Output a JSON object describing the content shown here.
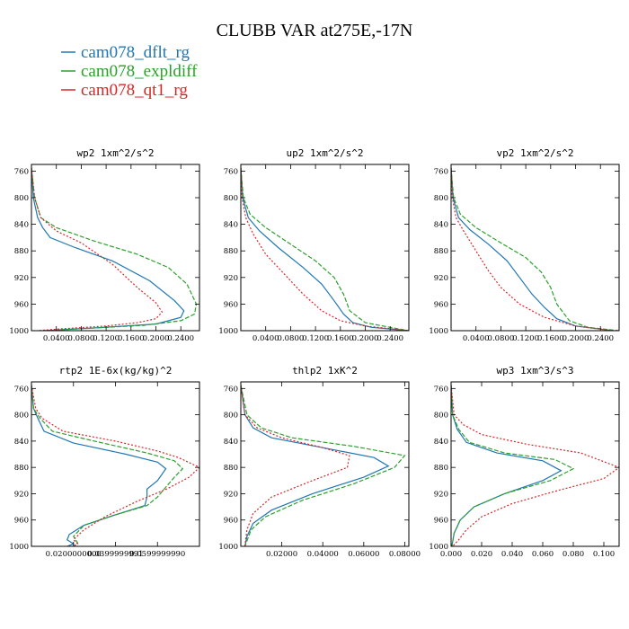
{
  "figure": {
    "title": "CLUBB VAR at275E,-17N",
    "legend": [
      {
        "name": "cam078_dflt_rg",
        "color": "#1f77b4"
      },
      {
        "name": "cam078_expldiff",
        "color": "#2ca02c"
      },
      {
        "name": "cam078_qt1_rg",
        "color": "#d62728"
      }
    ]
  },
  "chart_data": [
    {
      "type": "line",
      "title": "wp2   1xm^2/s^2",
      "xlim": [
        0.0,
        0.27
      ],
      "ylim": [
        1000,
        750
      ],
      "y_inverted": true,
      "xticks": [
        0.04,
        0.08,
        0.12,
        0.16,
        0.2,
        0.24
      ],
      "xtick_labels": [
        "0.0400",
        "0.0800",
        "0.1200",
        "0.1600",
        "0.2000",
        "0.2400"
      ],
      "yticks": [
        760,
        800,
        840,
        880,
        920,
        960,
        1000
      ],
      "ytick_labels": [
        "760",
        "800",
        "840",
        "880",
        "920",
        "960",
        "1000"
      ],
      "series": [
        {
          "name": "cam078_dflt_rg",
          "x": [
            0,
            0.003,
            0.01,
            0.018,
            0.03,
            0.07,
            0.13,
            0.19,
            0.23,
            0.245,
            0.24,
            0.2,
            0.1,
            0.02
          ],
          "y": [
            755,
            800,
            830,
            845,
            860,
            875,
            895,
            925,
            955,
            970,
            980,
            990,
            996,
            1000
          ]
        },
        {
          "name": "cam078_expldiff",
          "x": [
            0,
            0.005,
            0.015,
            0.04,
            0.1,
            0.17,
            0.22,
            0.25,
            0.265,
            0.262,
            0.24,
            0.18,
            0.08,
            0.02
          ],
          "y": [
            755,
            800,
            830,
            845,
            865,
            885,
            905,
            930,
            960,
            975,
            985,
            992,
            997,
            1000
          ]
        },
        {
          "name": "cam078_qt1_rg",
          "x": [
            0,
            0.005,
            0.015,
            0.04,
            0.08,
            0.13,
            0.17,
            0.2,
            0.21,
            0.2,
            0.17,
            0.12,
            0.05,
            0.01
          ],
          "y": [
            755,
            800,
            830,
            850,
            868,
            900,
            935,
            958,
            972,
            982,
            988,
            993,
            997,
            1000
          ]
        }
      ]
    },
    {
      "type": "line",
      "title": "up2   1xm^2/s^2",
      "xlim": [
        0.0,
        0.27
      ],
      "ylim": [
        1000,
        750
      ],
      "y_inverted": true,
      "xticks": [
        0.04,
        0.08,
        0.12,
        0.16,
        0.2,
        0.24
      ],
      "xtick_labels": [
        "0.0400",
        "0.0800",
        "0.1200",
        "0.1600",
        "0.2000",
        "0.2400"
      ],
      "yticks": [
        760,
        800,
        840,
        880,
        920,
        960,
        1000
      ],
      "ytick_labels": [
        "760",
        "800",
        "840",
        "880",
        "920",
        "960",
        "1000"
      ],
      "series": [
        {
          "name": "cam078_dflt_rg",
          "x": [
            0,
            0.003,
            0.012,
            0.03,
            0.06,
            0.1,
            0.13,
            0.15,
            0.165,
            0.18,
            0.21,
            0.27
          ],
          "y": [
            755,
            800,
            830,
            850,
            875,
            905,
            930,
            955,
            975,
            988,
            995,
            1000
          ]
        },
        {
          "name": "cam078_expldiff",
          "x": [
            0,
            0.004,
            0.015,
            0.04,
            0.08,
            0.12,
            0.15,
            0.165,
            0.175,
            0.2,
            0.24,
            0.27
          ],
          "y": [
            755,
            800,
            825,
            845,
            870,
            895,
            920,
            945,
            970,
            988,
            995,
            1000
          ]
        },
        {
          "name": "cam078_qt1_rg",
          "x": [
            0,
            0.002,
            0.008,
            0.02,
            0.04,
            0.07,
            0.1,
            0.13,
            0.16,
            0.2,
            0.25,
            0.27
          ],
          "y": [
            755,
            800,
            830,
            855,
            885,
            915,
            945,
            970,
            985,
            993,
            998,
            1000
          ]
        }
      ]
    },
    {
      "type": "line",
      "title": "vp2   1xm^2/s^2",
      "xlim": [
        0.0,
        0.27
      ],
      "ylim": [
        1000,
        750
      ],
      "y_inverted": true,
      "xticks": [
        0.04,
        0.08,
        0.12,
        0.16,
        0.2,
        0.24
      ],
      "xtick_labels": [
        "0.0400",
        "0.0800",
        "0.1200",
        "0.1600",
        "0.2000",
        "0.2400"
      ],
      "yticks": [
        760,
        800,
        840,
        880,
        920,
        960,
        1000
      ],
      "ytick_labels": [
        "760",
        "800",
        "840",
        "880",
        "920",
        "960",
        "1000"
      ],
      "series": [
        {
          "name": "cam078_dflt_rg",
          "x": [
            0,
            0.003,
            0.012,
            0.03,
            0.06,
            0.09,
            0.11,
            0.13,
            0.15,
            0.17,
            0.2,
            0.26
          ],
          "y": [
            755,
            800,
            830,
            848,
            870,
            895,
            920,
            945,
            965,
            982,
            993,
            1000
          ]
        },
        {
          "name": "cam078_expldiff",
          "x": [
            0,
            0.004,
            0.015,
            0.04,
            0.08,
            0.12,
            0.145,
            0.16,
            0.17,
            0.19,
            0.22,
            0.27
          ],
          "y": [
            755,
            800,
            825,
            845,
            868,
            890,
            912,
            935,
            960,
            985,
            995,
            1000
          ]
        },
        {
          "name": "cam078_qt1_rg",
          "x": [
            0,
            0.002,
            0.008,
            0.02,
            0.04,
            0.06,
            0.08,
            0.11,
            0.15,
            0.2,
            0.26
          ],
          "y": [
            755,
            800,
            830,
            850,
            880,
            910,
            935,
            960,
            980,
            993,
            1000
          ]
        }
      ]
    },
    {
      "type": "line",
      "title": "rtp2   1E-6x(kg/kg)^2",
      "xlim": [
        0.0,
        0.08
      ],
      "ylim": [
        1000,
        750
      ],
      "y_inverted": true,
      "xticks": [
        0.02,
        0.04,
        0.06
      ],
      "xtick_labels": [
        "0.0200000000",
        "0.0399999991",
        "0.0599999990"
      ],
      "yticks": [
        760,
        800,
        840,
        880,
        920,
        960,
        1000
      ],
      "ytick_labels": [
        "760",
        "800",
        "840",
        "880",
        "920",
        "960",
        "1000"
      ],
      "series": [
        {
          "name": "cam078_dflt_rg",
          "x": [
            0,
            0.001,
            0.003,
            0.006,
            0.02,
            0.045,
            0.06,
            0.064,
            0.06,
            0.055,
            0.055,
            0.054,
            0.04,
            0.025,
            0.018,
            0.017,
            0.02,
            0.017
          ],
          "y": [
            755,
            790,
            805,
            825,
            843,
            860,
            872,
            882,
            900,
            913,
            925,
            938,
            952,
            968,
            982,
            990,
            996,
            1000
          ]
        },
        {
          "name": "cam078_expldiff",
          "x": [
            0,
            0.001,
            0.004,
            0.01,
            0.03,
            0.055,
            0.068,
            0.072,
            0.068,
            0.064,
            0.06,
            0.055,
            0.04,
            0.025,
            0.02,
            0.022,
            0.02
          ],
          "y": [
            755,
            790,
            805,
            825,
            840,
            858,
            870,
            882,
            895,
            910,
            925,
            938,
            952,
            968,
            985,
            995,
            1000
          ]
        },
        {
          "name": "cam078_qt1_rg",
          "x": [
            0,
            0.002,
            0.005,
            0.015,
            0.04,
            0.06,
            0.07,
            0.08,
            0.075,
            0.065,
            0.05,
            0.035,
            0.025,
            0.02,
            0.022,
            0.02
          ],
          "y": [
            755,
            790,
            805,
            825,
            840,
            855,
            865,
            880,
            895,
            912,
            932,
            955,
            975,
            990,
            996,
            1000
          ]
        }
      ]
    },
    {
      "type": "line",
      "title": "thlp2   1xK^2",
      "xlim": [
        0.0,
        0.082
      ],
      "ylim": [
        1000,
        750
      ],
      "y_inverted": true,
      "xticks": [
        0.02,
        0.04,
        0.06,
        0.08
      ],
      "xtick_labels": [
        "0.02000",
        "0.04000",
        "0.06000",
        "0.08000"
      ],
      "yticks": [
        760,
        800,
        840,
        880,
        920,
        960,
        1000
      ],
      "ytick_labels": [
        "760",
        "800",
        "840",
        "880",
        "920",
        "960",
        "1000"
      ],
      "series": [
        {
          "name": "cam078_dflt_rg",
          "x": [
            0,
            0.002,
            0.006,
            0.015,
            0.04,
            0.065,
            0.072,
            0.06,
            0.035,
            0.015,
            0.006,
            0.003,
            0.002
          ],
          "y": [
            755,
            800,
            820,
            835,
            850,
            865,
            878,
            895,
            920,
            945,
            965,
            985,
            1000
          ]
        },
        {
          "name": "cam078_expldiff",
          "x": [
            0,
            0.003,
            0.01,
            0.025,
            0.055,
            0.08,
            0.075,
            0.055,
            0.03,
            0.012,
            0.005,
            0.002
          ],
          "y": [
            755,
            800,
            820,
            835,
            848,
            862,
            880,
            905,
            930,
            955,
            975,
            1000
          ]
        },
        {
          "name": "cam078_qt1_rg",
          "x": [
            0,
            0.002,
            0.008,
            0.02,
            0.04,
            0.053,
            0.052,
            0.035,
            0.015,
            0.006,
            0.003,
            0.002
          ],
          "y": [
            755,
            800,
            820,
            835,
            850,
            862,
            880,
            900,
            925,
            950,
            975,
            1000
          ]
        }
      ]
    },
    {
      "type": "line",
      "title": "wp3   1xm^3/s^3",
      "xlim": [
        0.0,
        0.11
      ],
      "ylim": [
        1000,
        750
      ],
      "y_inverted": true,
      "xticks": [
        0.0,
        0.02,
        0.04,
        0.06,
        0.08,
        0.1
      ],
      "xtick_labels": [
        "0.000",
        "0.020",
        "0.040",
        "0.060",
        "0.080",
        "0.100"
      ],
      "yticks": [
        760,
        800,
        840,
        880,
        920,
        960,
        1000
      ],
      "ytick_labels": [
        "760",
        "800",
        "840",
        "880",
        "920",
        "960",
        "1000"
      ],
      "series": [
        {
          "name": "cam078_dflt_rg",
          "x": [
            0,
            0.001,
            0.004,
            0.01,
            0.03,
            0.06,
            0.072,
            0.06,
            0.035,
            0.015,
            0.006,
            0.002,
            0.0005
          ],
          "y": [
            755,
            800,
            822,
            842,
            858,
            870,
            885,
            900,
            920,
            940,
            960,
            980,
            1000
          ]
        },
        {
          "name": "cam078_expldiff",
          "x": [
            0,
            0.001,
            0.005,
            0.012,
            0.035,
            0.068,
            0.08,
            0.065,
            0.035,
            0.015,
            0.006,
            0.002,
            0.0005
          ],
          "y": [
            755,
            800,
            822,
            842,
            858,
            868,
            882,
            900,
            920,
            940,
            960,
            980,
            1000
          ]
        },
        {
          "name": "cam078_qt1_rg",
          "x": [
            0,
            0.002,
            0.008,
            0.02,
            0.05,
            0.085,
            0.11,
            0.1,
            0.07,
            0.04,
            0.02,
            0.01,
            0.005,
            0.001
          ],
          "y": [
            755,
            800,
            815,
            830,
            845,
            858,
            880,
            897,
            915,
            935,
            955,
            975,
            990,
            1000
          ]
        }
      ]
    }
  ]
}
